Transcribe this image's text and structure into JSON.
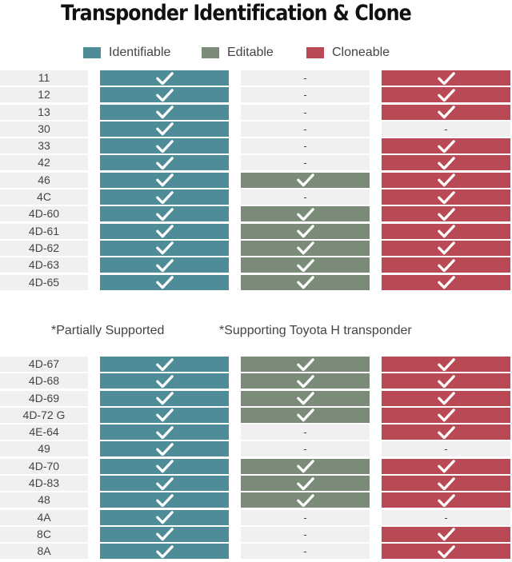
{
  "title": "Transponder Identification & Clone",
  "legend": [
    {
      "label": "Identifiable",
      "color": "#4e8c98"
    },
    {
      "label": "Editable",
      "color": "#7a8b78"
    },
    {
      "label": "Cloneable",
      "color": "#b94a55"
    }
  ],
  "check_icon": "checkmark-icon",
  "dash": "-",
  "notes": {
    "partial": "*Partially Supported",
    "toyota": "*Supporting Toyota H transponder"
  },
  "table1": [
    {
      "label": "11",
      "identifiable": true,
      "editable": false,
      "cloneable": true
    },
    {
      "label": "12",
      "identifiable": true,
      "editable": false,
      "cloneable": true
    },
    {
      "label": "13",
      "identifiable": true,
      "editable": false,
      "cloneable": true
    },
    {
      "label": "30",
      "identifiable": true,
      "editable": false,
      "cloneable": false
    },
    {
      "label": "33",
      "identifiable": true,
      "editable": false,
      "cloneable": true
    },
    {
      "label": "42",
      "identifiable": true,
      "editable": false,
      "cloneable": true
    },
    {
      "label": "46",
      "identifiable": true,
      "editable": true,
      "cloneable": true
    },
    {
      "label": "4C",
      "identifiable": true,
      "editable": false,
      "cloneable": true
    },
    {
      "label": "4D-60",
      "identifiable": true,
      "editable": true,
      "cloneable": true
    },
    {
      "label": "4D-61",
      "identifiable": true,
      "editable": true,
      "cloneable": true
    },
    {
      "label": "4D-62",
      "identifiable": true,
      "editable": true,
      "cloneable": true
    },
    {
      "label": "4D-63",
      "identifiable": true,
      "editable": true,
      "cloneable": true
    },
    {
      "label": "4D-65",
      "identifiable": true,
      "editable": true,
      "cloneable": true
    }
  ],
  "table2": [
    {
      "label": "4D-67",
      "identifiable": true,
      "editable": true,
      "cloneable": true
    },
    {
      "label": "4D-68",
      "identifiable": true,
      "editable": true,
      "cloneable": true
    },
    {
      "label": "4D-69",
      "identifiable": true,
      "editable": true,
      "cloneable": true
    },
    {
      "label": "4D-72 G",
      "identifiable": true,
      "editable": true,
      "cloneable": true
    },
    {
      "label": "4E-64",
      "identifiable": true,
      "editable": false,
      "cloneable": true
    },
    {
      "label": "49",
      "identifiable": true,
      "editable": false,
      "cloneable": false
    },
    {
      "label": "4D-70",
      "identifiable": true,
      "editable": true,
      "cloneable": true
    },
    {
      "label": "4D-83",
      "identifiable": true,
      "editable": true,
      "cloneable": true
    },
    {
      "label": "48",
      "identifiable": true,
      "editable": true,
      "cloneable": true
    },
    {
      "label": "4A",
      "identifiable": true,
      "editable": false,
      "cloneable": false
    },
    {
      "label": "8C",
      "identifiable": true,
      "editable": false,
      "cloneable": true
    },
    {
      "label": "8A",
      "identifiable": true,
      "editable": false,
      "cloneable": true
    }
  ]
}
